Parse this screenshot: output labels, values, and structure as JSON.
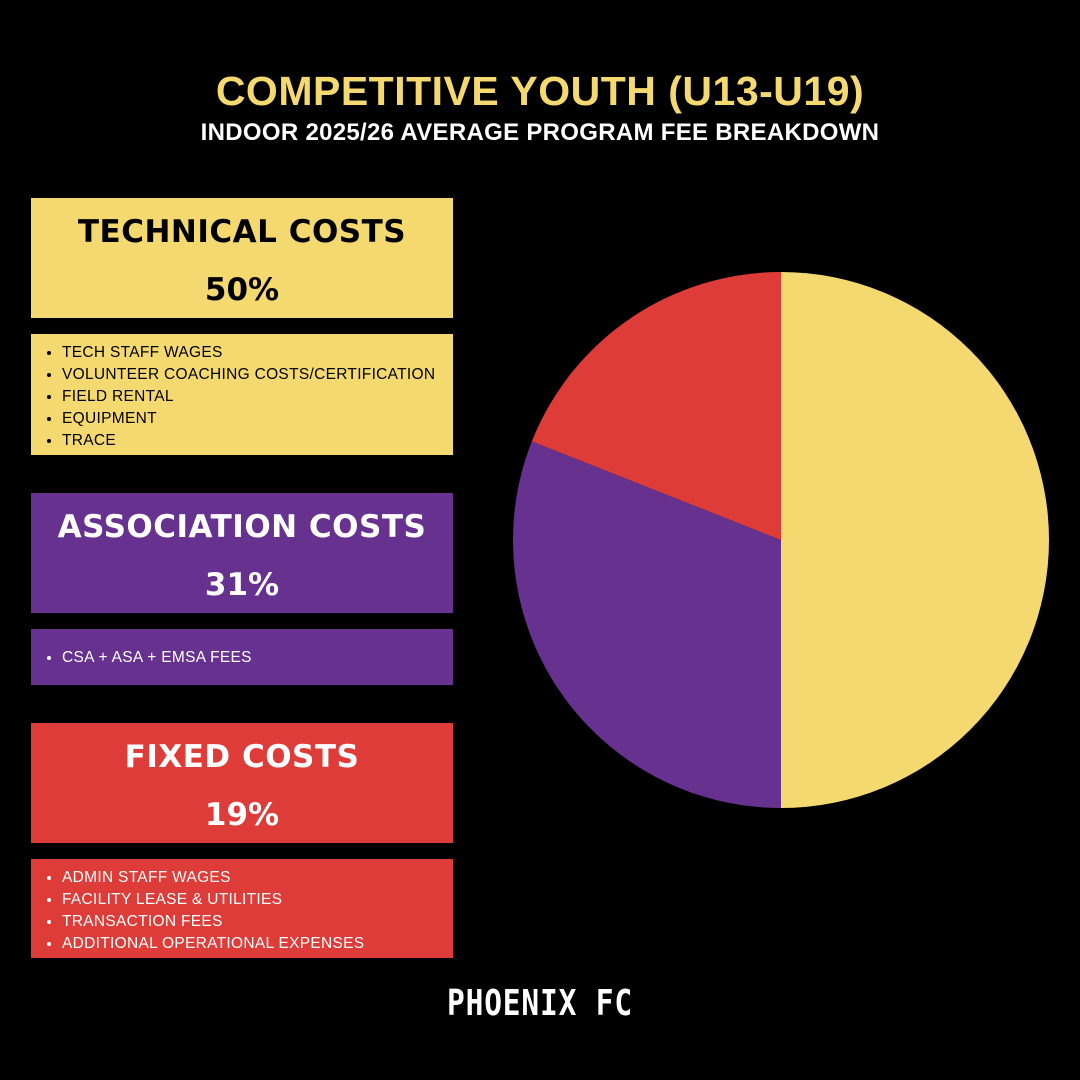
{
  "header": {
    "title": "COMPETITIVE YOUTH (U13-U19)",
    "subtitle": "INDOOR 2025/26 AVERAGE PROGRAM FEE BREAKDOWN"
  },
  "categories": [
    {
      "name": "TECHNICAL COSTS",
      "percent": "50%",
      "items": [
        "TECH STAFF WAGES",
        "VOLUNTEER COACHING COSTS/CERTIFICATION",
        "FIELD RENTAL",
        "EQUIPMENT",
        "TRACE"
      ]
    },
    {
      "name": "ASSOCIATION COSTS",
      "percent": "31%",
      "items": [
        "CSA + ASA + EMSA FEES"
      ]
    },
    {
      "name": "FIXED COSTS",
      "percent": "19%",
      "items": [
        "ADMIN STAFF WAGES",
        "FACILITY LEASE & UTILITIES",
        "TRANSACTION FEES",
        "ADDITIONAL OPERATIONAL EXPENSES"
      ]
    }
  ],
  "logo_text": "PHOENIX FC",
  "chart_data": {
    "type": "pie",
    "categories": [
      "TECHNICAL COSTS",
      "ASSOCIATION COSTS",
      "FIXED COSTS"
    ],
    "values": [
      50,
      31,
      19
    ],
    "colors": [
      "#f4d970",
      "#67318f",
      "#dd3c39"
    ],
    "start": "top",
    "direction": "clockwise"
  }
}
